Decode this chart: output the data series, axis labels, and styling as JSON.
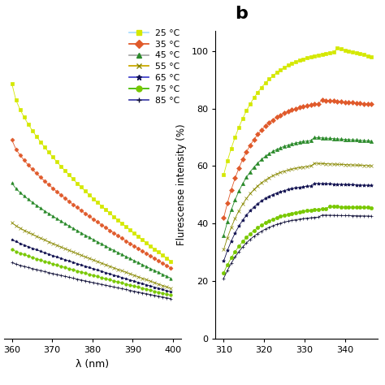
{
  "temps": [
    "25 °C",
    "35 °C",
    "45 °C",
    "55 °C",
    "65 °C",
    "75 °C",
    "85 °C"
  ],
  "colors": [
    "#d4e800",
    "#e05a2b",
    "#2a8a2a",
    "#888800",
    "#101050",
    "#78c800",
    "#101038"
  ],
  "markers": [
    "s",
    "D",
    "^",
    "x",
    "*",
    "o",
    "+"
  ],
  "legend_line_colors": [
    "#aaddff",
    "#e05a2b",
    "#aaaaaa",
    "#ccaa00",
    "#4444cc",
    "#44bb00",
    "#4444aa"
  ],
  "panel_a_xlabel": "λ (nm)",
  "panel_b_ylabel": "Flurescense intensity (%)",
  "panel_b_label": "b",
  "panel_a_xticks": [
    360,
    370,
    380,
    390,
    400
  ],
  "panel_b_xticks": [
    310,
    320,
    330,
    340
  ],
  "panel_b_yticks": [
    0,
    20,
    40,
    60,
    80,
    100
  ],
  "curves_b_start": [
    57,
    42,
    36,
    31,
    27,
    23,
    21
  ],
  "curves_b_peak": [
    101,
    83,
    70,
    61,
    54,
    46,
    43
  ],
  "curves_b_peak_x": [
    338,
    334,
    332,
    332,
    332,
    336,
    334
  ],
  "curves_b_decay": [
    0.35,
    0.12,
    0.09,
    0.06,
    0.05,
    0.04,
    0.03
  ],
  "curves_a_left": [
    72,
    55,
    42,
    30,
    25,
    22,
    18
  ],
  "curves_a_right": [
    18,
    16,
    13,
    10,
    9,
    8,
    7
  ],
  "curves_a_curve": [
    0.65,
    0.72,
    0.78,
    0.85,
    0.87,
    0.85,
    0.88
  ]
}
